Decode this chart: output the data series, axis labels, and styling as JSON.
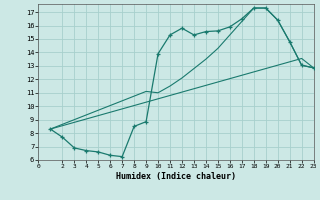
{
  "xlabel": "Humidex (Indice chaleur)",
  "bg_color": "#cce8e5",
  "grid_color": "#a8d0cc",
  "line_color": "#1a7a6e",
  "ylim": [
    6,
    17.6
  ],
  "xlim": [
    0,
    23
  ],
  "ytick_vals": [
    6,
    7,
    8,
    9,
    10,
    11,
    12,
    13,
    14,
    15,
    16,
    17
  ],
  "xtick_vals": [
    0,
    2,
    3,
    4,
    5,
    6,
    7,
    8,
    9,
    10,
    11,
    12,
    13,
    14,
    15,
    16,
    17,
    18,
    19,
    20,
    21,
    22,
    23
  ],
  "curve1_x": [
    1,
    2,
    3,
    4,
    5,
    6,
    7,
    8,
    9,
    10,
    11,
    12,
    13,
    14,
    15,
    16,
    17,
    18,
    19,
    20,
    21,
    22,
    23
  ],
  "curve1_y": [
    8.3,
    7.7,
    6.9,
    6.7,
    6.6,
    6.35,
    6.25,
    8.5,
    8.85,
    13.9,
    15.3,
    15.8,
    15.3,
    15.55,
    15.6,
    15.9,
    16.5,
    17.3,
    17.3,
    16.4,
    14.8,
    13.05,
    12.85
  ],
  "curve2_x": [
    1,
    2,
    3,
    4,
    5,
    6,
    7,
    8,
    9,
    10,
    11,
    12,
    13,
    14,
    15,
    16,
    17,
    18,
    19,
    20,
    21,
    22,
    23
  ],
  "curve2_y": [
    8.3,
    8.55,
    8.8,
    9.05,
    9.3,
    9.55,
    9.8,
    10.05,
    10.3,
    10.55,
    10.8,
    11.05,
    11.3,
    11.55,
    11.8,
    12.05,
    12.3,
    12.55,
    12.8,
    13.05,
    13.3,
    13.55,
    12.85
  ],
  "curve3_x": [
    1,
    2,
    3,
    4,
    5,
    6,
    7,
    8,
    9,
    10,
    11,
    12,
    13,
    14,
    15,
    16,
    17,
    18,
    19,
    20,
    21,
    22,
    23
  ],
  "curve3_y": [
    8.3,
    8.65,
    9.0,
    9.35,
    9.7,
    10.05,
    10.4,
    10.75,
    11.1,
    11.0,
    11.5,
    12.1,
    12.8,
    13.5,
    14.3,
    15.3,
    16.3,
    17.3,
    17.3,
    16.4,
    14.8,
    13.05,
    12.85
  ]
}
